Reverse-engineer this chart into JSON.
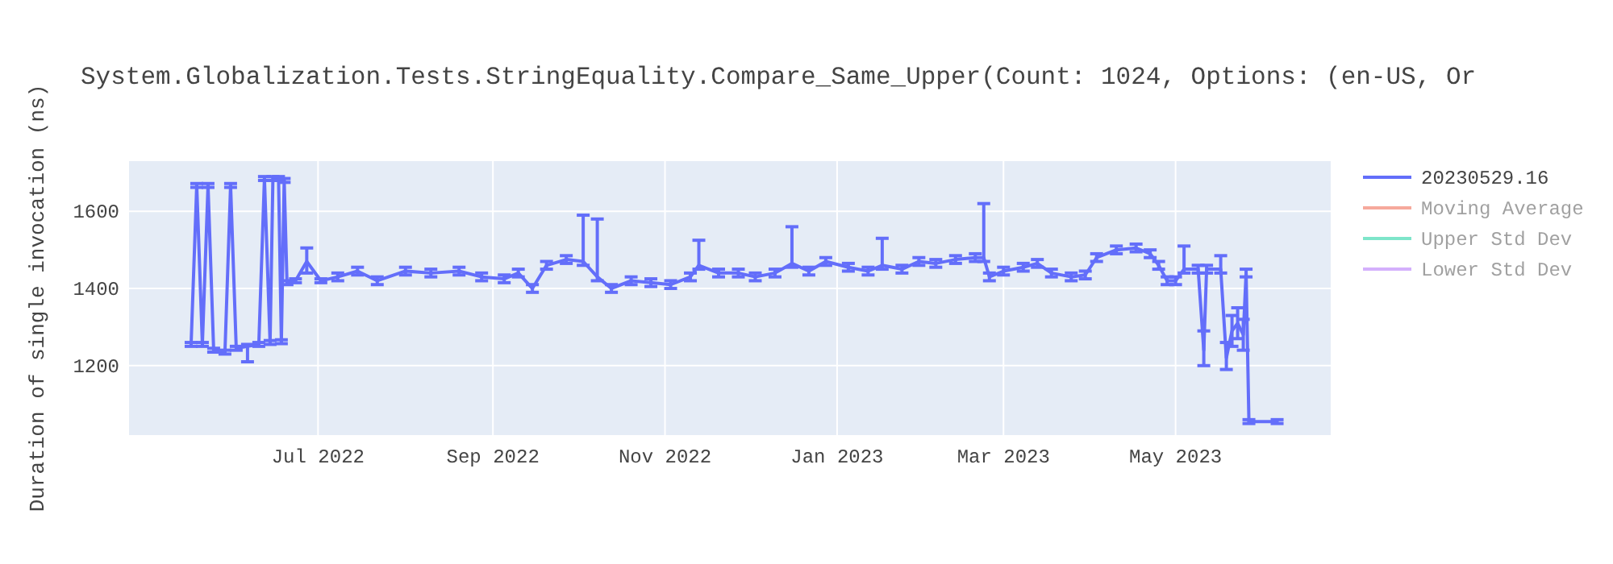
{
  "chart_data": {
    "type": "line",
    "title": "System.Globalization.Tests.StringEquality.Compare_Same_Upper(Count: 1024, Options: (en-US, Or",
    "ylabel": "Duration of single invocation (ns)",
    "x": [
      "2022-05-17",
      "2022-05-19",
      "2022-05-21",
      "2022-05-23",
      "2022-05-25",
      "2022-05-29",
      "2022-05-31",
      "2022-06-02",
      "2022-06-06",
      "2022-06-10",
      "2022-06-12",
      "2022-06-14",
      "2022-06-15",
      "2022-06-17",
      "2022-06-18",
      "2022-06-19",
      "2022-06-20",
      "2022-06-23",
      "2022-06-27",
      "2022-07-02",
      "2022-07-08",
      "2022-07-15",
      "2022-07-22",
      "2022-08-01",
      "2022-08-10",
      "2022-08-20",
      "2022-08-28",
      "2022-09-05",
      "2022-09-10",
      "2022-09-15",
      "2022-09-20",
      "2022-09-27",
      "2022-10-03",
      "2022-10-08",
      "2022-10-13",
      "2022-10-20",
      "2022-10-27",
      "2022-11-03",
      "2022-11-10",
      "2022-11-13",
      "2022-11-20",
      "2022-11-27",
      "2022-12-03",
      "2022-12-10",
      "2022-12-16",
      "2022-12-22",
      "2022-12-28",
      "2023-01-05",
      "2023-01-12",
      "2023-01-17",
      "2023-01-24",
      "2023-01-30",
      "2023-02-05",
      "2023-02-12",
      "2023-02-19",
      "2023-02-22",
      "2023-02-24",
      "2023-03-01",
      "2023-03-08",
      "2023-03-13",
      "2023-03-18",
      "2023-03-25",
      "2023-03-30",
      "2023-04-03",
      "2023-04-10",
      "2023-04-17",
      "2023-04-22",
      "2023-04-25",
      "2023-04-28",
      "2023-05-01",
      "2023-05-04",
      "2023-05-09",
      "2023-05-11",
      "2023-05-12",
      "2023-05-17",
      "2023-05-19",
      "2023-05-21",
      "2023-05-23",
      "2023-05-25",
      "2023-05-26",
      "2023-05-27",
      "2023-06-06"
    ],
    "series": [
      {
        "name": "20230529.16",
        "color": "#636efa",
        "values": [
          1255,
          1667,
          1255,
          1667,
          1240,
          1235,
          1667,
          1245,
          1250,
          1255,
          1685,
          1260,
          1685,
          1685,
          1262,
          1680,
          1415,
          1420,
          1470,
          1420,
          1430,
          1445,
          1420,
          1445,
          1440,
          1445,
          1430,
          1425,
          1440,
          1400,
          1460,
          1475,
          1470,
          1430,
          1400,
          1420,
          1415,
          1410,
          1430,
          1460,
          1440,
          1440,
          1430,
          1440,
          1465,
          1445,
          1470,
          1455,
          1445,
          1460,
          1450,
          1470,
          1465,
          1475,
          1480,
          1480,
          1430,
          1445,
          1455,
          1465,
          1440,
          1430,
          1435,
          1480,
          1500,
          1505,
          1490,
          1460,
          1420,
          1420,
          1450,
          1450,
          1240,
          1450,
          1450,
          1220,
          1290,
          1310,
          1280,
          1440,
          1055,
          1055
        ],
        "errors": [
          5,
          5,
          5,
          5,
          5,
          5,
          5,
          5,
          [
            1210,
            1255
          ],
          5,
          5,
          5,
          5,
          5,
          5,
          5,
          5,
          5,
          [
            1440,
            1505
          ],
          5,
          10,
          10,
          10,
          10,
          10,
          10,
          10,
          10,
          10,
          10,
          10,
          10,
          [
            1460,
            1590
          ],
          [
            1420,
            1580
          ],
          10,
          10,
          10,
          10,
          10,
          [
            1450,
            1525
          ],
          10,
          10,
          10,
          10,
          [
            1455,
            1560
          ],
          10,
          10,
          10,
          10,
          [
            1450,
            1530
          ],
          10,
          10,
          10,
          10,
          10,
          [
            1470,
            1620
          ],
          10,
          10,
          10,
          10,
          10,
          10,
          10,
          10,
          10,
          10,
          10,
          10,
          10,
          10,
          [
            1440,
            1510
          ],
          10,
          [
            1200,
            1290
          ],
          10,
          [
            1440,
            1485
          ],
          [
            1190,
            1260
          ],
          [
            1250,
            1330
          ],
          [
            1270,
            1350
          ],
          [
            1240,
            1320
          ],
          10,
          5,
          5
        ]
      },
      {
        "name": "Moving Average",
        "color": "#ef553b",
        "values": [
          null,
          null,
          null,
          null,
          null,
          null,
          null,
          null,
          null,
          null,
          null,
          null,
          null,
          null,
          null,
          null,
          null,
          null,
          null,
          null,
          null,
          null,
          null,
          null,
          null,
          null,
          null,
          null,
          null,
          null,
          null,
          null,
          null,
          null,
          null,
          null,
          null,
          null,
          null,
          null,
          null,
          null,
          null,
          null,
          null,
          null,
          null,
          null,
          null,
          null,
          null,
          null,
          null,
          null,
          null,
          null,
          null,
          null,
          null,
          null,
          null,
          null,
          null,
          null,
          null,
          null,
          null,
          null,
          null,
          null,
          null,
          null,
          null,
          null,
          null,
          null,
          null,
          null,
          null,
          null,
          null,
          null
        ]
      },
      {
        "name": "Upper Std Dev",
        "color": "#00cc96",
        "values": [
          null,
          null,
          null,
          null,
          null,
          null,
          null,
          null,
          null,
          null,
          null,
          null,
          null,
          null,
          null,
          null,
          null,
          null,
          null,
          null,
          null,
          null,
          null,
          null,
          null,
          null,
          null,
          null,
          null,
          null,
          null,
          null,
          null,
          null,
          null,
          null,
          null,
          null,
          null,
          null,
          null,
          null,
          null,
          null,
          null,
          null,
          null,
          null,
          null,
          null,
          null,
          null,
          null,
          null,
          null,
          null,
          null,
          null,
          null,
          null,
          null,
          null,
          null,
          null,
          null,
          null,
          null,
          null,
          null,
          null,
          null,
          null,
          null,
          null,
          null,
          null,
          null,
          null,
          null,
          null,
          null,
          null
        ]
      },
      {
        "name": "Lower Std Dev",
        "color": "#ab63fa",
        "values": [
          null,
          null,
          null,
          null,
          null,
          null,
          null,
          null,
          null,
          null,
          null,
          null,
          null,
          null,
          null,
          null,
          null,
          null,
          null,
          null,
          null,
          null,
          null,
          null,
          null,
          null,
          null,
          null,
          null,
          null,
          null,
          null,
          null,
          null,
          null,
          null,
          null,
          null,
          null,
          null,
          null,
          null,
          null,
          null,
          null,
          null,
          null,
          null,
          null,
          null,
          null,
          null,
          null,
          null,
          null,
          null,
          null,
          null,
          null,
          null,
          null,
          null,
          null,
          null,
          null,
          null,
          null,
          null,
          null,
          null,
          null,
          null,
          null,
          null,
          null,
          null,
          null,
          null,
          null,
          null,
          null,
          null
        ]
      }
    ],
    "xlim": [
      "2022-04-25",
      "2023-06-25"
    ],
    "xticks": [
      {
        "value": "2022-07-01",
        "label": "Jul 2022"
      },
      {
        "value": "2022-09-01",
        "label": "Sep 2022"
      },
      {
        "value": "2022-11-01",
        "label": "Nov 2022"
      },
      {
        "value": "2023-01-01",
        "label": "Jan 2023"
      },
      {
        "value": "2023-03-01",
        "label": "Mar 2023"
      },
      {
        "value": "2023-05-01",
        "label": "May 2023"
      }
    ],
    "ylim": [
      1020,
      1730
    ],
    "yticks": [
      1200,
      1400,
      1600
    ],
    "grid": true,
    "legend": "top right",
    "line_style": "solid"
  }
}
